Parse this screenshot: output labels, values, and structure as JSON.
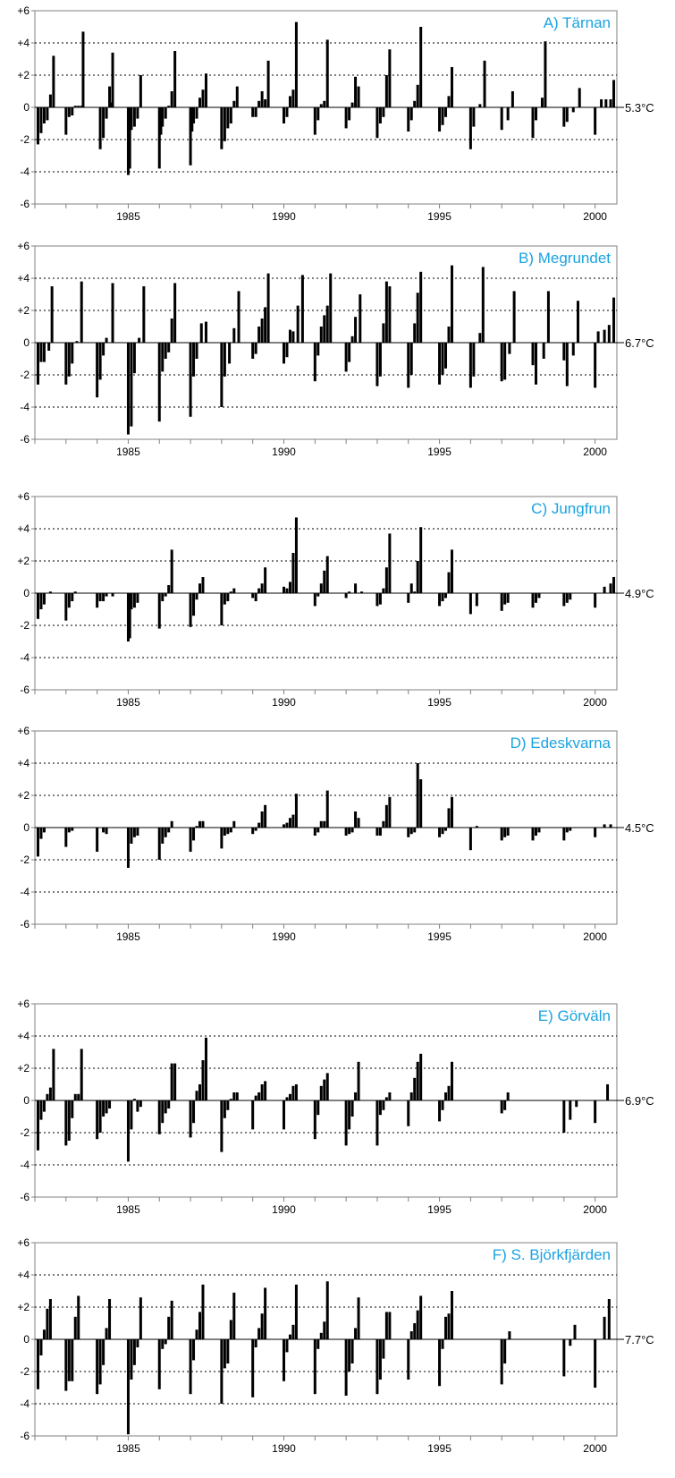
{
  "colors": {
    "bars": "#000000",
    "title": "#1aa3e0",
    "grid": "#000000",
    "frame": "#808080"
  },
  "chart_data": [
    {
      "type": "bar",
      "title": "A) Tärnan",
      "mean_label": "5.3°C",
      "ylim": [
        -6,
        6
      ],
      "y_ticks": [
        "-6",
        "-4",
        "-2",
        "0",
        "+2",
        "+4",
        "+6"
      ],
      "x_ticks": [
        "1985",
        "1990",
        "1995",
        "2000"
      ],
      "xlim": [
        1982.0,
        2000.7
      ],
      "grid": "horizontal dotted",
      "x": [
        1982.1,
        1982.2,
        1982.3,
        1982.4,
        1982.5,
        1982.6,
        1983.0,
        1983.1,
        1983.2,
        1983.3,
        1983.4,
        1983.5,
        1983.55,
        1984.1,
        1984.2,
        1984.3,
        1984.4,
        1984.45,
        1984.5,
        1985.0,
        1985.05,
        1985.1,
        1985.2,
        1985.3,
        1985.4,
        1986.0,
        1986.05,
        1986.1,
        1986.2,
        1986.3,
        1986.4,
        1986.5,
        1987.0,
        1987.05,
        1987.1,
        1987.2,
        1987.3,
        1987.4,
        1987.5,
        1988.0,
        1988.1,
        1988.2,
        1988.3,
        1988.4,
        1988.5,
        1989.0,
        1989.1,
        1989.2,
        1989.3,
        1989.4,
        1989.5,
        1990.0,
        1990.1,
        1990.2,
        1990.3,
        1990.4,
        1991.0,
        1991.1,
        1991.2,
        1991.3,
        1991.4,
        1992.0,
        1992.1,
        1992.2,
        1992.3,
        1992.4,
        1993.0,
        1993.1,
        1993.2,
        1993.3,
        1993.4,
        1994.0,
        1994.1,
        1994.2,
        1994.3,
        1994.4,
        1995.0,
        1995.1,
        1995.2,
        1995.3,
        1995.4,
        1996.0,
        1996.1,
        1996.3,
        1996.45,
        1997.0,
        1997.2,
        1997.35,
        1998.0,
        1998.1,
        1998.3,
        1998.4,
        1999.0,
        1999.1,
        1999.3,
        1999.5,
        2000.0,
        2000.2,
        2000.35,
        2000.5,
        2000.6
      ],
      "values": [
        -2.3,
        -1.6,
        -1.0,
        -0.8,
        0.8,
        3.2,
        -1.7,
        -0.6,
        -0.5,
        0.1,
        0.1,
        0.1,
        4.7,
        -2.6,
        -1.9,
        -0.7,
        1.3,
        0.3,
        3.4,
        -4.2,
        -3.8,
        -1.4,
        -1.2,
        -0.7,
        2.0,
        -3.8,
        -1.7,
        -1.2,
        -0.7,
        0.1,
        1.0,
        3.5,
        -3.6,
        -1.5,
        -1.0,
        -0.7,
        0.6,
        1.1,
        2.1,
        -2.6,
        -2.1,
        -1.3,
        -1.0,
        0.4,
        1.3,
        -0.6,
        -0.6,
        0.4,
        1.0,
        0.5,
        2.9,
        -1.0,
        -0.6,
        0.7,
        1.1,
        5.3,
        -1.7,
        -0.8,
        0.2,
        0.4,
        4.2,
        -1.3,
        -0.8,
        0.3,
        1.9,
        1.3,
        -1.9,
        -1.0,
        -0.6,
        2.0,
        3.6,
        -1.5,
        -0.8,
        0.4,
        1.4,
        5.0,
        -1.5,
        -1.1,
        -0.6,
        0.7,
        2.5,
        -2.6,
        -1.2,
        0.2,
        2.9,
        -1.4,
        -0.8,
        1.0,
        -1.9,
        -0.8,
        0.6,
        4.1,
        -1.2,
        -0.9,
        -0.3,
        1.2,
        -1.7,
        0.5,
        0.5,
        0.5,
        1.7
      ]
    },
    {
      "type": "bar",
      "title": "B) Megrundet",
      "mean_label": "6.7°C",
      "ylim": [
        -6,
        6
      ],
      "y_ticks": [
        "-6",
        "-4",
        "-2",
        "0",
        "+2",
        "+4",
        "+6"
      ],
      "x_ticks": [
        "1985",
        "1990",
        "1995",
        "2000"
      ],
      "xlim": [
        1982.0,
        2000.7
      ],
      "grid": "horizontal dotted",
      "x": [
        1982.1,
        1982.2,
        1982.3,
        1982.45,
        1982.55,
        1983.0,
        1983.1,
        1983.2,
        1983.35,
        1983.5,
        1984.0,
        1984.1,
        1984.2,
        1984.3,
        1984.5,
        1985.0,
        1985.1,
        1985.2,
        1985.35,
        1985.5,
        1986.0,
        1986.1,
        1986.2,
        1986.3,
        1986.4,
        1986.5,
        1987.0,
        1987.1,
        1987.2,
        1987.35,
        1987.5,
        1988.0,
        1988.1,
        1988.25,
        1988.4,
        1988.55,
        1989.0,
        1989.1,
        1989.2,
        1989.3,
        1989.4,
        1989.5,
        1990.0,
        1990.1,
        1990.2,
        1990.3,
        1990.45,
        1990.6,
        1991.0,
        1991.1,
        1991.2,
        1991.3,
        1991.4,
        1991.5,
        1992.0,
        1992.1,
        1992.2,
        1992.3,
        1992.45,
        1993.0,
        1993.1,
        1993.2,
        1993.3,
        1993.4,
        1994.0,
        1994.1,
        1994.2,
        1994.3,
        1994.4,
        1995.0,
        1995.1,
        1995.2,
        1995.3,
        1995.4,
        1996.0,
        1996.1,
        1996.3,
        1996.4,
        1997.0,
        1997.1,
        1997.25,
        1997.4,
        1998.0,
        1998.1,
        1998.35,
        1998.5,
        1999.0,
        1999.1,
        1999.3,
        1999.45,
        2000.0,
        2000.1,
        2000.3,
        2000.45,
        2000.6
      ],
      "values": [
        -2.6,
        -1.2,
        -1.2,
        -0.5,
        3.5,
        -2.6,
        -2.1,
        -1.3,
        0.1,
        3.8,
        -3.4,
        -2.3,
        -0.8,
        0.3,
        3.7,
        -5.7,
        -5.2,
        -1.9,
        0.3,
        3.5,
        -4.9,
        -1.8,
        -1.0,
        -0.6,
        1.5,
        3.7,
        -4.6,
        -2.1,
        -1.0,
        1.2,
        1.3,
        -4.0,
        -2.1,
        -1.3,
        0.9,
        3.2,
        -1.0,
        -0.7,
        1.0,
        1.5,
        2.2,
        4.3,
        -1.3,
        -0.9,
        0.8,
        0.7,
        2.3,
        4.2,
        -2.4,
        -0.8,
        1.0,
        1.7,
        2.3,
        4.3,
        -1.8,
        -1.2,
        0.4,
        1.6,
        3.0,
        -2.7,
        -2.1,
        1.2,
        3.8,
        3.5,
        -2.8,
        -2.0,
        1.2,
        3.1,
        4.4,
        -2.6,
        -2.0,
        -1.6,
        1.0,
        4.8,
        -2.8,
        -2.1,
        0.6,
        4.7,
        -2.4,
        -2.3,
        -0.7,
        3.2,
        -1.4,
        -2.6,
        -1.0,
        3.2,
        -1.1,
        -2.7,
        -0.8,
        2.6,
        -2.8,
        0.7,
        0.8,
        1.1,
        2.8
      ]
    },
    {
      "type": "bar",
      "title": "C) Jungfrun",
      "mean_label": "4.9°C",
      "ylim": [
        -6,
        6
      ],
      "y_ticks": [
        "-6",
        "-4",
        "-2",
        "0",
        "+2",
        "+4",
        "+6"
      ],
      "x_ticks": [
        "1985",
        "1990",
        "1995",
        "2000"
      ],
      "xlim": [
        1982.0,
        2000.7
      ],
      "grid": "horizontal dotted",
      "x": [
        1982.1,
        1982.2,
        1982.3,
        1982.5,
        1983.0,
        1983.1,
        1983.2,
        1983.3,
        1984.0,
        1984.1,
        1984.2,
        1984.3,
        1984.5,
        1985.0,
        1985.05,
        1985.1,
        1985.2,
        1985.3,
        1986.0,
        1986.1,
        1986.2,
        1986.3,
        1986.4,
        1987.0,
        1987.1,
        1987.2,
        1987.3,
        1987.4,
        1988.0,
        1988.1,
        1988.2,
        1988.3,
        1988.4,
        1989.0,
        1989.1,
        1989.2,
        1989.3,
        1989.4,
        1990.0,
        1990.1,
        1990.2,
        1990.3,
        1990.4,
        1991.0,
        1991.1,
        1991.2,
        1991.3,
        1991.4,
        1992.0,
        1992.1,
        1992.3,
        1992.5,
        1993.0,
        1993.1,
        1993.2,
        1993.3,
        1993.4,
        1994.0,
        1994.1,
        1994.2,
        1994.3,
        1994.4,
        1995.0,
        1995.1,
        1995.2,
        1995.3,
        1995.4,
        1996.0,
        1996.2,
        1997.0,
        1997.1,
        1997.2,
        1998.0,
        1998.1,
        1998.2,
        1999.0,
        1999.1,
        1999.2,
        2000.0,
        2000.3,
        2000.5,
        2000.6
      ],
      "values": [
        -1.6,
        -1.0,
        -0.7,
        0.1,
        -1.7,
        -0.9,
        -0.5,
        0.1,
        -0.9,
        -0.5,
        -0.5,
        -0.2,
        -0.2,
        -3.0,
        -2.8,
        -1.0,
        -0.9,
        -0.6,
        -2.2,
        -0.5,
        -0.2,
        0.5,
        2.7,
        -2.1,
        -1.4,
        -0.4,
        0.6,
        1.0,
        -2.0,
        -0.7,
        -0.5,
        0.1,
        0.3,
        -0.3,
        -0.5,
        0.3,
        0.6,
        1.6,
        0.4,
        0.3,
        0.7,
        2.5,
        4.7,
        -0.8,
        -0.2,
        0.6,
        1.4,
        2.3,
        -0.3,
        0.1,
        0.6,
        0.1,
        -0.8,
        -0.7,
        0.3,
        1.6,
        3.7,
        -0.6,
        0.6,
        0.1,
        2.0,
        4.1,
        -0.8,
        -0.5,
        -0.3,
        1.3,
        2.7,
        -1.3,
        -0.8,
        -1.1,
        -0.7,
        -0.6,
        -0.9,
        -0.6,
        -0.3,
        -0.8,
        -0.6,
        -0.4,
        -0.9,
        0.4,
        0.6,
        1.0
      ]
    },
    {
      "type": "bar",
      "title": "D) Edeskvarna",
      "mean_label": "4.5°C",
      "ylim": [
        -6,
        6
      ],
      "y_ticks": [
        "-6",
        "-4",
        "-2",
        "0",
        "+2",
        "+4",
        "+6"
      ],
      "x_ticks": [
        "1985",
        "1990",
        "1995",
        "2000"
      ],
      "xlim": [
        1982.0,
        2000.7
      ],
      "grid": "horizontal dotted",
      "x": [
        1982.1,
        1982.2,
        1982.3,
        1983.0,
        1983.1,
        1983.2,
        1984.0,
        1984.2,
        1984.3,
        1985.0,
        1985.1,
        1985.2,
        1985.3,
        1986.0,
        1986.1,
        1986.2,
        1986.3,
        1986.4,
        1987.0,
        1987.1,
        1987.2,
        1987.3,
        1987.4,
        1988.0,
        1988.1,
        1988.2,
        1988.3,
        1988.4,
        1989.0,
        1989.1,
        1989.2,
        1989.3,
        1989.4,
        1990.0,
        1990.1,
        1990.2,
        1990.3,
        1990.4,
        1991.0,
        1991.1,
        1991.2,
        1991.3,
        1991.4,
        1992.0,
        1992.1,
        1992.2,
        1992.3,
        1992.4,
        1993.0,
        1993.1,
        1993.2,
        1993.3,
        1993.4,
        1994.0,
        1994.1,
        1994.2,
        1994.3,
        1994.4,
        1995.0,
        1995.1,
        1995.2,
        1995.3,
        1995.4,
        1996.0,
        1996.2,
        1997.0,
        1997.1,
        1997.2,
        1998.0,
        1998.1,
        1998.2,
        1999.0,
        1999.1,
        1999.2,
        2000.0,
        2000.3,
        2000.5
      ],
      "values": [
        -1.8,
        -0.7,
        -0.3,
        -1.2,
        -0.3,
        -0.2,
        -1.5,
        -0.3,
        -0.4,
        -2.5,
        -1.0,
        -0.6,
        -0.5,
        -2.0,
        -1.0,
        -0.6,
        -0.3,
        0.4,
        -1.5,
        -0.8,
        0.1,
        0.4,
        0.4,
        -1.3,
        -0.5,
        -0.4,
        -0.3,
        0.4,
        -0.4,
        -0.2,
        0.3,
        1.0,
        1.4,
        0.2,
        0.3,
        0.6,
        0.8,
        2.1,
        -0.5,
        -0.3,
        0.4,
        0.4,
        2.3,
        -0.5,
        -0.4,
        -0.3,
        1.0,
        0.6,
        -0.5,
        -0.5,
        0.4,
        1.4,
        1.9,
        -0.6,
        -0.4,
        -0.3,
        4.0,
        3.0,
        -0.6,
        -0.4,
        -0.2,
        1.2,
        1.9,
        -1.4,
        0.1,
        -0.8,
        -0.6,
        -0.5,
        -0.8,
        -0.5,
        -0.3,
        -0.8,
        -0.3,
        -0.2,
        -0.6,
        0.2,
        0.2
      ]
    },
    {
      "type": "bar",
      "title": "E) Görväln",
      "mean_label": "6.9°C",
      "ylim": [
        -6,
        6
      ],
      "y_ticks": [
        "-6",
        "-4",
        "-2",
        "0",
        "+2",
        "+4",
        "+6"
      ],
      "x_ticks": [
        "1985",
        "1990",
        "1995",
        "2000"
      ],
      "xlim": [
        1982.0,
        2000.7
      ],
      "grid": "horizontal dotted",
      "x": [
        1982.1,
        1982.2,
        1982.3,
        1982.4,
        1982.5,
        1982.6,
        1983.0,
        1983.1,
        1983.2,
        1983.3,
        1983.4,
        1983.5,
        1984.0,
        1984.1,
        1984.2,
        1984.3,
        1984.4,
        1985.0,
        1985.1,
        1985.2,
        1985.3,
        1985.4,
        1986.0,
        1986.1,
        1986.2,
        1986.3,
        1986.4,
        1986.5,
        1987.0,
        1987.1,
        1987.2,
        1987.3,
        1987.4,
        1987.5,
        1988.0,
        1988.1,
        1988.2,
        1988.3,
        1988.4,
        1988.5,
        1989.0,
        1989.1,
        1989.2,
        1989.3,
        1989.4,
        1990.0,
        1990.1,
        1990.2,
        1990.3,
        1990.4,
        1991.0,
        1991.1,
        1991.2,
        1991.3,
        1991.4,
        1992.0,
        1992.1,
        1992.2,
        1992.3,
        1992.4,
        1993.0,
        1993.1,
        1993.2,
        1993.3,
        1993.4,
        1994.0,
        1994.1,
        1994.2,
        1994.3,
        1994.4,
        1995.0,
        1995.1,
        1995.2,
        1995.3,
        1995.4,
        1997.0,
        1997.1,
        1997.2,
        1999.0,
        1999.2,
        1999.4,
        2000.0,
        2000.4
      ],
      "values": [
        -3.1,
        -1.2,
        -0.7,
        0.4,
        0.8,
        3.2,
        -2.8,
        -2.5,
        -1.1,
        0.4,
        0.4,
        3.2,
        -2.4,
        -2.0,
        -1.0,
        -0.8,
        -0.5,
        -3.8,
        -1.8,
        0.1,
        -0.7,
        -0.4,
        -2.1,
        -1.4,
        -0.8,
        -0.5,
        2.3,
        2.3,
        -2.3,
        -1.4,
        0.6,
        1.0,
        2.5,
        3.9,
        -3.2,
        -1.1,
        -0.6,
        0.1,
        0.5,
        0.5,
        -1.8,
        0.3,
        0.5,
        1.0,
        1.2,
        -1.8,
        0.2,
        0.4,
        0.9,
        1.0,
        -2.4,
        -0.9,
        0.9,
        1.3,
        1.7,
        -2.8,
        -1.8,
        -1.0,
        0.5,
        2.4,
        -2.8,
        -0.9,
        -0.6,
        0.2,
        0.5,
        -1.6,
        0.5,
        1.4,
        2.4,
        2.9,
        -1.3,
        -0.6,
        0.5,
        0.9,
        2.4,
        -0.8,
        -0.6,
        0.5,
        -2.0,
        -1.2,
        -0.4,
        -1.4,
        1.0
      ]
    },
    {
      "type": "bar",
      "title": "F) S. Björkfjärden",
      "mean_label": "7.7°C",
      "ylim": [
        -6,
        6
      ],
      "y_ticks": [
        "-6",
        "-4",
        "-2",
        "0",
        "+2",
        "+4",
        "+6"
      ],
      "x_ticks": [
        "1985",
        "1990",
        "1995",
        "2000"
      ],
      "xlim": [
        1982.0,
        2000.7
      ],
      "grid": "horizontal dotted",
      "x": [
        1982.1,
        1982.2,
        1982.3,
        1982.4,
        1982.5,
        1983.0,
        1983.1,
        1983.2,
        1983.3,
        1983.4,
        1984.0,
        1984.1,
        1984.2,
        1984.3,
        1984.4,
        1985.0,
        1985.1,
        1985.2,
        1985.3,
        1985.4,
        1986.0,
        1986.1,
        1986.2,
        1986.3,
        1986.4,
        1987.0,
        1987.1,
        1987.2,
        1987.3,
        1987.4,
        1988.0,
        1988.1,
        1988.2,
        1988.3,
        1988.4,
        1989.0,
        1989.1,
        1989.2,
        1989.3,
        1989.4,
        1990.0,
        1990.1,
        1990.2,
        1990.3,
        1990.4,
        1991.0,
        1991.1,
        1991.2,
        1991.3,
        1991.4,
        1992.0,
        1992.1,
        1992.2,
        1992.3,
        1992.4,
        1993.0,
        1993.1,
        1993.2,
        1993.3,
        1993.4,
        1994.0,
        1994.1,
        1994.2,
        1994.3,
        1994.4,
        1995.0,
        1995.1,
        1995.2,
        1995.3,
        1995.4,
        1997.0,
        1997.1,
        1997.25,
        1999.0,
        1999.2,
        1999.35,
        2000.0,
        2000.3,
        2000.45
      ],
      "values": [
        -3.1,
        -1.0,
        0.6,
        1.9,
        2.5,
        -3.2,
        -2.6,
        -2.6,
        1.4,
        2.7,
        -3.4,
        -2.8,
        -1.6,
        0.7,
        2.5,
        -5.9,
        -2.5,
        -1.6,
        -0.5,
        2.6,
        -3.1,
        -0.6,
        -0.3,
        1.4,
        2.4,
        -3.4,
        -1.3,
        0.6,
        1.7,
        3.4,
        -4.0,
        -1.8,
        -1.5,
        1.2,
        2.9,
        -3.6,
        -0.5,
        0.7,
        1.6,
        3.2,
        -2.6,
        -0.8,
        0.3,
        0.9,
        3.4,
        -3.4,
        -0.6,
        0.4,
        1.1,
        3.6,
        -3.5,
        -2.0,
        -1.5,
        0.7,
        2.6,
        -3.4,
        -2.5,
        -1.2,
        1.7,
        1.7,
        -2.5,
        0.5,
        1.0,
        1.8,
        2.7,
        -2.9,
        -0.6,
        1.4,
        1.6,
        3.0,
        -2.8,
        -1.5,
        0.5,
        -2.3,
        -0.4,
        0.9,
        -3.0,
        1.4,
        2.5
      ]
    }
  ]
}
